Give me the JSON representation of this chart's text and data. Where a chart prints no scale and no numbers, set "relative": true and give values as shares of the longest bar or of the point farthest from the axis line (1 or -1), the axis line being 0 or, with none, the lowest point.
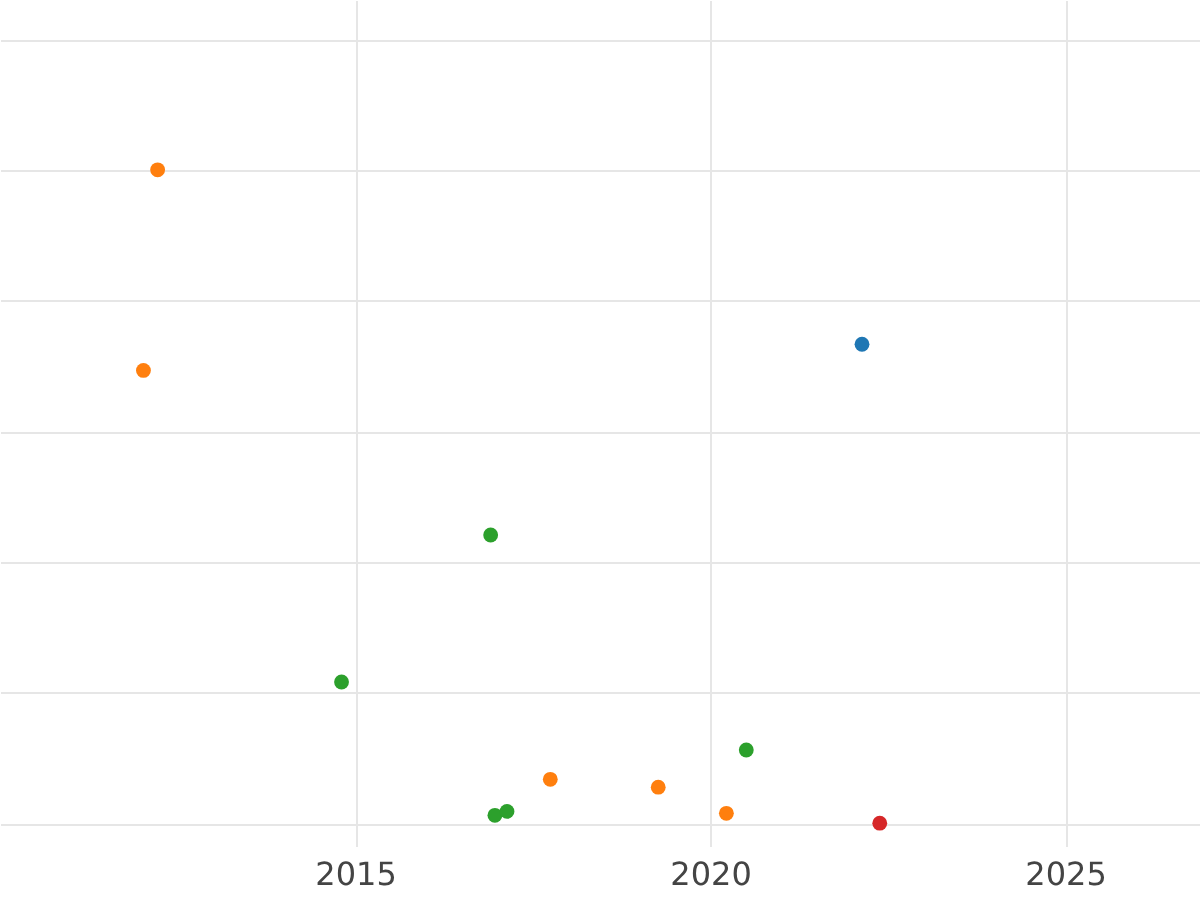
{
  "chart_data": {
    "type": "scatter",
    "relative": true,
    "xlim": [
      2010.0,
      2026.9
    ],
    "xticks": [
      2015,
      2020,
      2025
    ],
    "grid": true,
    "marker": "circle",
    "legend": false,
    "series": [
      {
        "color": "#1f77b4",
        "x": [
          2022.14
        ],
        "values": [
          0.733
        ]
      },
      {
        "color": "#ff7f0e",
        "x": [
          2012.22,
          2012.02,
          2017.75,
          2019.27,
          2020.23
        ],
        "values": [
          1,
          0.693,
          0.067,
          0.055,
          0.015
        ]
      },
      {
        "color": "#2ca02c",
        "x": [
          2016.91,
          2014.81,
          2020.51,
          2016.97,
          2017.14
        ],
        "values": [
          0.441,
          0.216,
          0.112,
          0.012,
          0.018
        ]
      },
      {
        "color": "#d62728",
        "x": [
          2022.39
        ],
        "values": [
          0
        ]
      }
    ]
  }
}
